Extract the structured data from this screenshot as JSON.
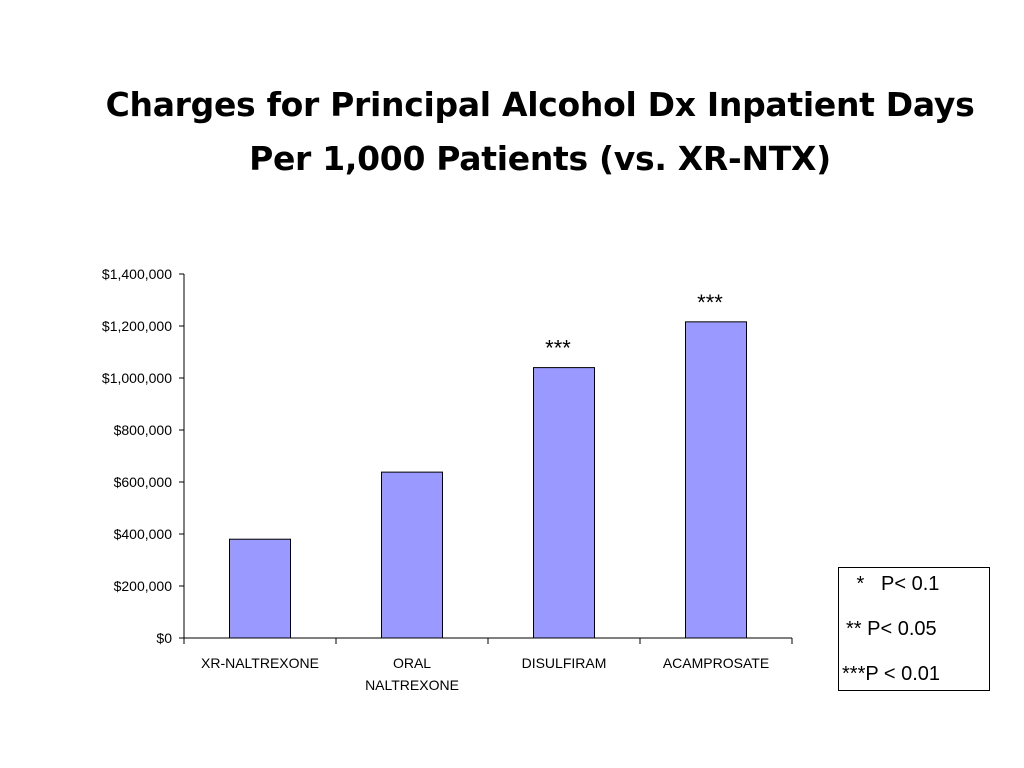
{
  "slide": {
    "title_lines": [
      "Charges for Principal Alcohol Dx Inpatient Days",
      "Per 1,000 Patients (vs. XR-NTX)"
    ]
  },
  "chart_data": {
    "type": "bar",
    "title": "Charges for Principal Alcohol Dx Inpatient Days Per 1,000 Patients (vs. XR-NTX)",
    "xlabel": "",
    "ylabel": "",
    "categories": [
      [
        "XR-NALTREXONE"
      ],
      [
        "ORAL",
        "NALTREXONE"
      ],
      [
        "DISULFIRAM"
      ],
      [
        "ACAMPROSATE"
      ]
    ],
    "values": [
      380000,
      638000,
      1040000,
      1216000
    ],
    "significance": [
      "",
      "",
      "***",
      "***"
    ],
    "ylim": [
      0,
      1400000
    ],
    "yticks": [
      0,
      200000,
      400000,
      600000,
      800000,
      1000000,
      1200000,
      1400000
    ],
    "ytick_labels": [
      "$0",
      "$200,000",
      "$400,000",
      "$600,000",
      "$800,000",
      "$1,000,000",
      "$1,200,000",
      "$1,400,000"
    ],
    "grid": false,
    "bar_color": "#9999FF",
    "bar_edge_color": "#000000",
    "legend_placement": "bottom-right"
  },
  "legend": {
    "lines": [
      " *   P< 0.1",
      "** P< 0.05",
      "***P < 0.01"
    ]
  }
}
